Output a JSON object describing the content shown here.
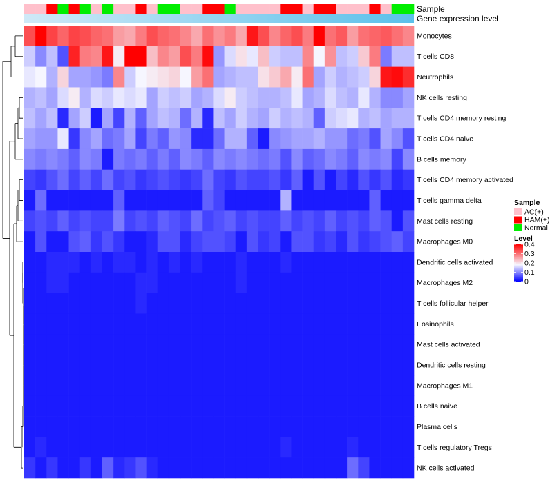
{
  "chart_data": {
    "type": "heatmap",
    "annotations": {
      "sample_track_label": "Sample",
      "gene_track_label": "Gene expression level"
    },
    "sample_groups": [
      "AC(+)",
      "HAM(+)",
      "Normal"
    ],
    "column_samples": [
      "AC(+)",
      "AC(+)",
      "HAM(+)",
      "Normal",
      "HAM(+)",
      "Normal",
      "AC(+)",
      "Normal",
      "AC(+)",
      "AC(+)",
      "HAM(+)",
      "AC(+)",
      "Normal",
      "Normal",
      "AC(+)",
      "AC(+)",
      "HAM(+)",
      "HAM(+)",
      "Normal",
      "AC(+)",
      "AC(+)",
      "AC(+)",
      "AC(+)",
      "HAM(+)",
      "HAM(+)",
      "AC(+)",
      "HAM(+)",
      "HAM(+)",
      "AC(+)",
      "AC(+)",
      "AC(+)",
      "HAM(+)",
      "AC(+)",
      "Normal",
      "Normal"
    ],
    "legend": {
      "sample_title": "Sample",
      "sample_entries": [
        {
          "label": "AC(+)",
          "color": "#ffc0cb"
        },
        {
          "label": "HAM(+)",
          "color": "#ff0000"
        },
        {
          "label": "Normal",
          "color": "#00ee00"
        }
      ],
      "level_title": "Level",
      "level_ticks": [
        "0.4",
        "0.3",
        "0.2",
        "0.1",
        "0"
      ],
      "level_range": [
        0,
        0.4
      ]
    },
    "color_scale": {
      "low": "#0000ff",
      "mid": "#f6f6ff",
      "high": "#ff0000",
      "mid_value": 0.18
    },
    "gene_gradient": [
      "#cfe9f7",
      "#5bc0ea"
    ],
    "rows": [
      {
        "name": "Monocytes",
        "values": [
          0.33,
          0.4,
          0.34,
          0.31,
          0.34,
          0.33,
          0.31,
          0.3,
          0.26,
          0.25,
          0.29,
          0.33,
          0.31,
          0.3,
          0.28,
          0.25,
          0.3,
          0.27,
          0.29,
          0.25,
          0.38,
          0.33,
          0.28,
          0.31,
          0.33,
          0.29,
          0.4,
          0.3,
          0.32,
          0.26,
          0.3,
          0.31,
          0.32,
          0.3,
          0.28
        ]
      },
      {
        "name": "T cells CD8",
        "values": [
          0.15,
          0.1,
          0.14,
          0.06,
          0.37,
          0.29,
          0.28,
          0.38,
          0.19,
          0.4,
          0.4,
          0.23,
          0.28,
          0.26,
          0.33,
          0.29,
          0.39,
          0.11,
          0.16,
          0.2,
          0.17,
          0.23,
          0.15,
          0.14,
          0.14,
          0.28,
          0.18,
          0.27,
          0.14,
          0.15,
          0.22,
          0.29,
          0.09,
          0.14,
          0.14
        ]
      },
      {
        "name": "Neutrophils",
        "values": [
          0.17,
          0.18,
          0.13,
          0.21,
          0.12,
          0.12,
          0.11,
          0.09,
          0.28,
          0.15,
          0.18,
          0.19,
          0.2,
          0.21,
          0.18,
          0.26,
          0.3,
          0.12,
          0.13,
          0.14,
          0.14,
          0.2,
          0.22,
          0.25,
          0.19,
          0.3,
          0.12,
          0.15,
          0.13,
          0.14,
          0.15,
          0.21,
          0.38,
          0.39,
          0.36
        ]
      },
      {
        "name": "NK cells resting",
        "values": [
          0.13,
          0.14,
          0.12,
          0.16,
          0.19,
          0.13,
          0.16,
          0.15,
          0.17,
          0.16,
          0.17,
          0.12,
          0.15,
          0.14,
          0.15,
          0.12,
          0.13,
          0.16,
          0.19,
          0.15,
          0.14,
          0.13,
          0.13,
          0.14,
          0.17,
          0.12,
          0.13,
          0.16,
          0.14,
          0.13,
          0.17,
          0.13,
          0.1,
          0.1,
          0.12
        ]
      },
      {
        "name": "T cells CD4 memory resting",
        "values": [
          0.14,
          0.12,
          0.14,
          0.03,
          0.12,
          0.15,
          0.02,
          0.12,
          0.05,
          0.13,
          0.07,
          0.12,
          0.14,
          0.13,
          0.08,
          0.13,
          0.03,
          0.14,
          0.12,
          0.15,
          0.13,
          0.12,
          0.15,
          0.13,
          0.14,
          0.13,
          0.07,
          0.15,
          0.16,
          0.17,
          0.13,
          0.14,
          0.12,
          0.13,
          0.13
        ]
      },
      {
        "name": "T cells CD4 naive",
        "values": [
          0.12,
          0.11,
          0.11,
          0.17,
          0.04,
          0.1,
          0.12,
          0.08,
          0.09,
          0.12,
          0.05,
          0.09,
          0.07,
          0.11,
          0.1,
          0.03,
          0.03,
          0.08,
          0.13,
          0.13,
          0.07,
          0.02,
          0.1,
          0.11,
          0.12,
          0.12,
          0.13,
          0.11,
          0.11,
          0.08,
          0.09,
          0.06,
          0.12,
          0.1,
          0.06
        ]
      },
      {
        "name": "B cells memory",
        "values": [
          0.1,
          0.09,
          0.1,
          0.09,
          0.07,
          0.1,
          0.09,
          0.02,
          0.09,
          0.08,
          0.09,
          0.07,
          0.09,
          0.07,
          0.1,
          0.09,
          0.07,
          0.1,
          0.09,
          0.1,
          0.09,
          0.08,
          0.09,
          0.06,
          0.1,
          0.07,
          0.08,
          0.1,
          0.09,
          0.07,
          0.1,
          0.09,
          0.1,
          0.05,
          0.1
        ]
      },
      {
        "name": "T cells CD4 memory activated",
        "values": [
          0.05,
          0.04,
          0.06,
          0.08,
          0.05,
          0.07,
          0.05,
          0.08,
          0.05,
          0.06,
          0.04,
          0.05,
          0.06,
          0.05,
          0.04,
          0.05,
          0.08,
          0.05,
          0.04,
          0.06,
          0.05,
          0.05,
          0.06,
          0.04,
          0.07,
          0.02,
          0.06,
          0.02,
          0.05,
          0.03,
          0.06,
          0.04,
          0.06,
          0.03,
          0.04
        ]
      },
      {
        "name": "T cells gamma delta",
        "values": [
          0.02,
          0.08,
          0.02,
          0.02,
          0.02,
          0.02,
          0.02,
          0.02,
          0.07,
          0.02,
          0.02,
          0.02,
          0.02,
          0.02,
          0.02,
          0.02,
          0.07,
          0.05,
          0.02,
          0.02,
          0.02,
          0.02,
          0.02,
          0.13,
          0.02,
          0.02,
          0.02,
          0.02,
          0.02,
          0.02,
          0.02,
          0.07,
          0.02,
          0.02,
          0.02
        ]
      },
      {
        "name": "Mast cells resting",
        "values": [
          0.05,
          0.06,
          0.05,
          0.07,
          0.05,
          0.06,
          0.05,
          0.05,
          0.09,
          0.05,
          0.06,
          0.05,
          0.07,
          0.06,
          0.05,
          0.08,
          0.05,
          0.06,
          0.07,
          0.05,
          0.06,
          0.05,
          0.05,
          0.07,
          0.05,
          0.06,
          0.05,
          0.07,
          0.05,
          0.06,
          0.05,
          0.07,
          0.06,
          0.02,
          0.06
        ]
      },
      {
        "name": "Macrophages M0",
        "values": [
          0.02,
          0.06,
          0.02,
          0.02,
          0.06,
          0.07,
          0.04,
          0.06,
          0.04,
          0.02,
          0.02,
          0.03,
          0.06,
          0.06,
          0.03,
          0.05,
          0.06,
          0.06,
          0.05,
          0.02,
          0.06,
          0.04,
          0.05,
          0.02,
          0.06,
          0.06,
          0.04,
          0.05,
          0.03,
          0.06,
          0.04,
          0.05,
          0.06,
          0.07,
          0.05
        ]
      },
      {
        "name": "Dendritic cells activated",
        "values": [
          0.02,
          0.02,
          0.03,
          0.03,
          0.03,
          0.02,
          0.03,
          0.02,
          0.03,
          0.03,
          0.02,
          0.03,
          0.02,
          0.03,
          0.02,
          0.03,
          0.02,
          0.02,
          0.02,
          0.03,
          0.02,
          0.02,
          0.02,
          0.03,
          0.02,
          0.02,
          0.02,
          0.02,
          0.02,
          0.02,
          0.02,
          0.02,
          0.02,
          0.02,
          0.02
        ]
      },
      {
        "name": "Macrophages M2",
        "values": [
          0.02,
          0.02,
          0.03,
          0.03,
          0.02,
          0.02,
          0.02,
          0.02,
          0.02,
          0.02,
          0.03,
          0.03,
          0.02,
          0.02,
          0.02,
          0.02,
          0.02,
          0.02,
          0.02,
          0.03,
          0.02,
          0.02,
          0.02,
          0.02,
          0.02,
          0.02,
          0.02,
          0.02,
          0.02,
          0.02,
          0.02,
          0.02,
          0.02,
          0.02,
          0.02
        ]
      },
      {
        "name": "T cells follicular helper",
        "values": [
          0.02,
          0.02,
          0.02,
          0.02,
          0.02,
          0.02,
          0.02,
          0.02,
          0.02,
          0.02,
          0.03,
          0.02,
          0.02,
          0.02,
          0.02,
          0.02,
          0.02,
          0.02,
          0.02,
          0.02,
          0.02,
          0.02,
          0.02,
          0.02,
          0.02,
          0.02,
          0.02,
          0.02,
          0.02,
          0.02,
          0.02,
          0.02,
          0.02,
          0.02,
          0.02
        ]
      },
      {
        "name": "Eosinophils",
        "values": [
          0.02,
          0.02,
          0.02,
          0.02,
          0.02,
          0.02,
          0.02,
          0.02,
          0.02,
          0.02,
          0.02,
          0.02,
          0.02,
          0.02,
          0.02,
          0.02,
          0.02,
          0.02,
          0.02,
          0.02,
          0.02,
          0.02,
          0.02,
          0.02,
          0.02,
          0.02,
          0.02,
          0.02,
          0.02,
          0.02,
          0.02,
          0.02,
          0.02,
          0.02,
          0.02
        ]
      },
      {
        "name": "Mast cells activated",
        "values": [
          0.02,
          0.02,
          0.02,
          0.02,
          0.02,
          0.02,
          0.02,
          0.02,
          0.02,
          0.02,
          0.02,
          0.02,
          0.02,
          0.02,
          0.02,
          0.02,
          0.02,
          0.02,
          0.02,
          0.02,
          0.02,
          0.02,
          0.02,
          0.02,
          0.02,
          0.02,
          0.02,
          0.02,
          0.02,
          0.02,
          0.02,
          0.02,
          0.02,
          0.02,
          0.02
        ]
      },
      {
        "name": "Dendritic cells resting",
        "values": [
          0.02,
          0.02,
          0.02,
          0.02,
          0.02,
          0.02,
          0.02,
          0.02,
          0.02,
          0.02,
          0.02,
          0.02,
          0.02,
          0.02,
          0.02,
          0.02,
          0.02,
          0.02,
          0.02,
          0.02,
          0.02,
          0.02,
          0.02,
          0.02,
          0.02,
          0.02,
          0.02,
          0.02,
          0.02,
          0.02,
          0.02,
          0.02,
          0.02,
          0.02,
          0.02
        ]
      },
      {
        "name": "Macrophages M1",
        "values": [
          0.02,
          0.02,
          0.02,
          0.02,
          0.02,
          0.02,
          0.02,
          0.02,
          0.02,
          0.02,
          0.02,
          0.02,
          0.02,
          0.02,
          0.02,
          0.02,
          0.02,
          0.02,
          0.02,
          0.02,
          0.02,
          0.02,
          0.02,
          0.02,
          0.02,
          0.02,
          0.02,
          0.02,
          0.02,
          0.02,
          0.02,
          0.02,
          0.02,
          0.02,
          0.02
        ]
      },
      {
        "name": "B cells naive",
        "values": [
          0.02,
          0.02,
          0.02,
          0.02,
          0.02,
          0.02,
          0.02,
          0.02,
          0.02,
          0.02,
          0.02,
          0.02,
          0.02,
          0.02,
          0.02,
          0.02,
          0.02,
          0.02,
          0.02,
          0.02,
          0.02,
          0.02,
          0.02,
          0.02,
          0.02,
          0.02,
          0.02,
          0.02,
          0.02,
          0.02,
          0.02,
          0.02,
          0.02,
          0.02,
          0.02
        ]
      },
      {
        "name": "Plasma cells",
        "values": [
          0.02,
          0.02,
          0.02,
          0.02,
          0.02,
          0.02,
          0.02,
          0.02,
          0.02,
          0.02,
          0.02,
          0.02,
          0.02,
          0.02,
          0.02,
          0.02,
          0.02,
          0.02,
          0.02,
          0.02,
          0.02,
          0.02,
          0.02,
          0.02,
          0.02,
          0.02,
          0.02,
          0.02,
          0.02,
          0.02,
          0.02,
          0.02,
          0.02,
          0.02,
          0.02
        ]
      },
      {
        "name": "T cells regulatory  Tregs",
        "values": [
          0.02,
          0.03,
          0.02,
          0.02,
          0.02,
          0.02,
          0.02,
          0.02,
          0.02,
          0.02,
          0.02,
          0.02,
          0.02,
          0.02,
          0.02,
          0.02,
          0.02,
          0.02,
          0.02,
          0.02,
          0.02,
          0.02,
          0.02,
          0.03,
          0.02,
          0.02,
          0.02,
          0.02,
          0.02,
          0.03,
          0.02,
          0.02,
          0.02,
          0.02,
          0.02
        ]
      },
      {
        "name": "NK cells activated",
        "values": [
          0.04,
          0.02,
          0.04,
          0.02,
          0.02,
          0.04,
          0.02,
          0.07,
          0.03,
          0.04,
          0.06,
          0.03,
          0.02,
          0.02,
          0.02,
          0.02,
          0.02,
          0.02,
          0.02,
          0.02,
          0.02,
          0.02,
          0.02,
          0.02,
          0.02,
          0.02,
          0.02,
          0.02,
          0.02,
          0.08,
          0.05,
          0.02,
          0.02,
          0.02,
          0.02
        ]
      }
    ]
  }
}
